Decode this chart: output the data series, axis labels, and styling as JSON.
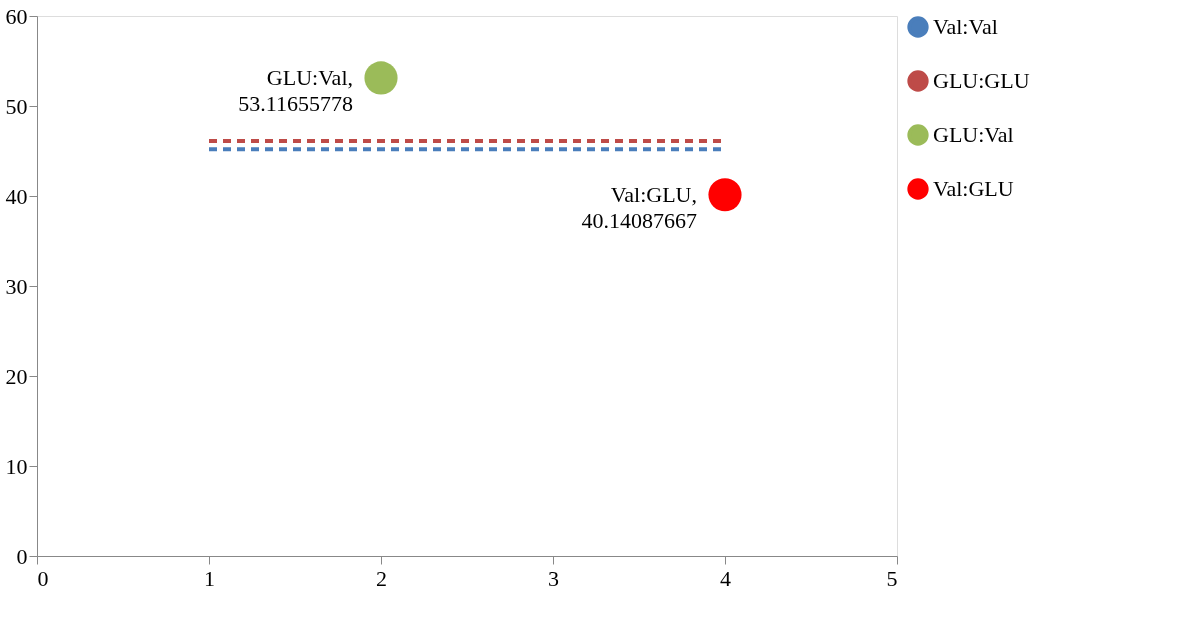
{
  "chart_data": {
    "type": "line",
    "xlim": [
      0,
      5
    ],
    "xticks": [
      0,
      1,
      2,
      3,
      4,
      5
    ],
    "ylim": [
      0,
      60
    ],
    "yticks": [
      0,
      10,
      20,
      30,
      40,
      50,
      60
    ],
    "grid": false,
    "legend": "right",
    "line_style": "dashed",
    "series": [
      {
        "name": "Val:Val",
        "color": "#4a7ebb",
        "x": [
          1,
          4
        ],
        "values": [
          45.2,
          45.2
        ]
      },
      {
        "name": "GLU:GLU",
        "color": "#be4b48",
        "x": [
          1,
          4
        ],
        "values": [
          46.1,
          46.1
        ]
      },
      {
        "name": "GLU:Val",
        "color": "#9bbb59",
        "type": "scatter",
        "marker": "circle",
        "x": [
          2
        ],
        "values": [
          53.11655778
        ]
      },
      {
        "name": "Val:GLU",
        "color": "#ff0000",
        "type": "scatter",
        "marker": "circle",
        "x": [
          4
        ],
        "values": [
          40.14087667
        ]
      }
    ],
    "annotations": [
      {
        "text": "GLU:Val,\n53.11655778",
        "x": 2,
        "y": 53.11655778
      },
      {
        "text": "Val:GLU,\n40.14087667",
        "x": 4,
        "y": 40.14087667
      }
    ]
  }
}
